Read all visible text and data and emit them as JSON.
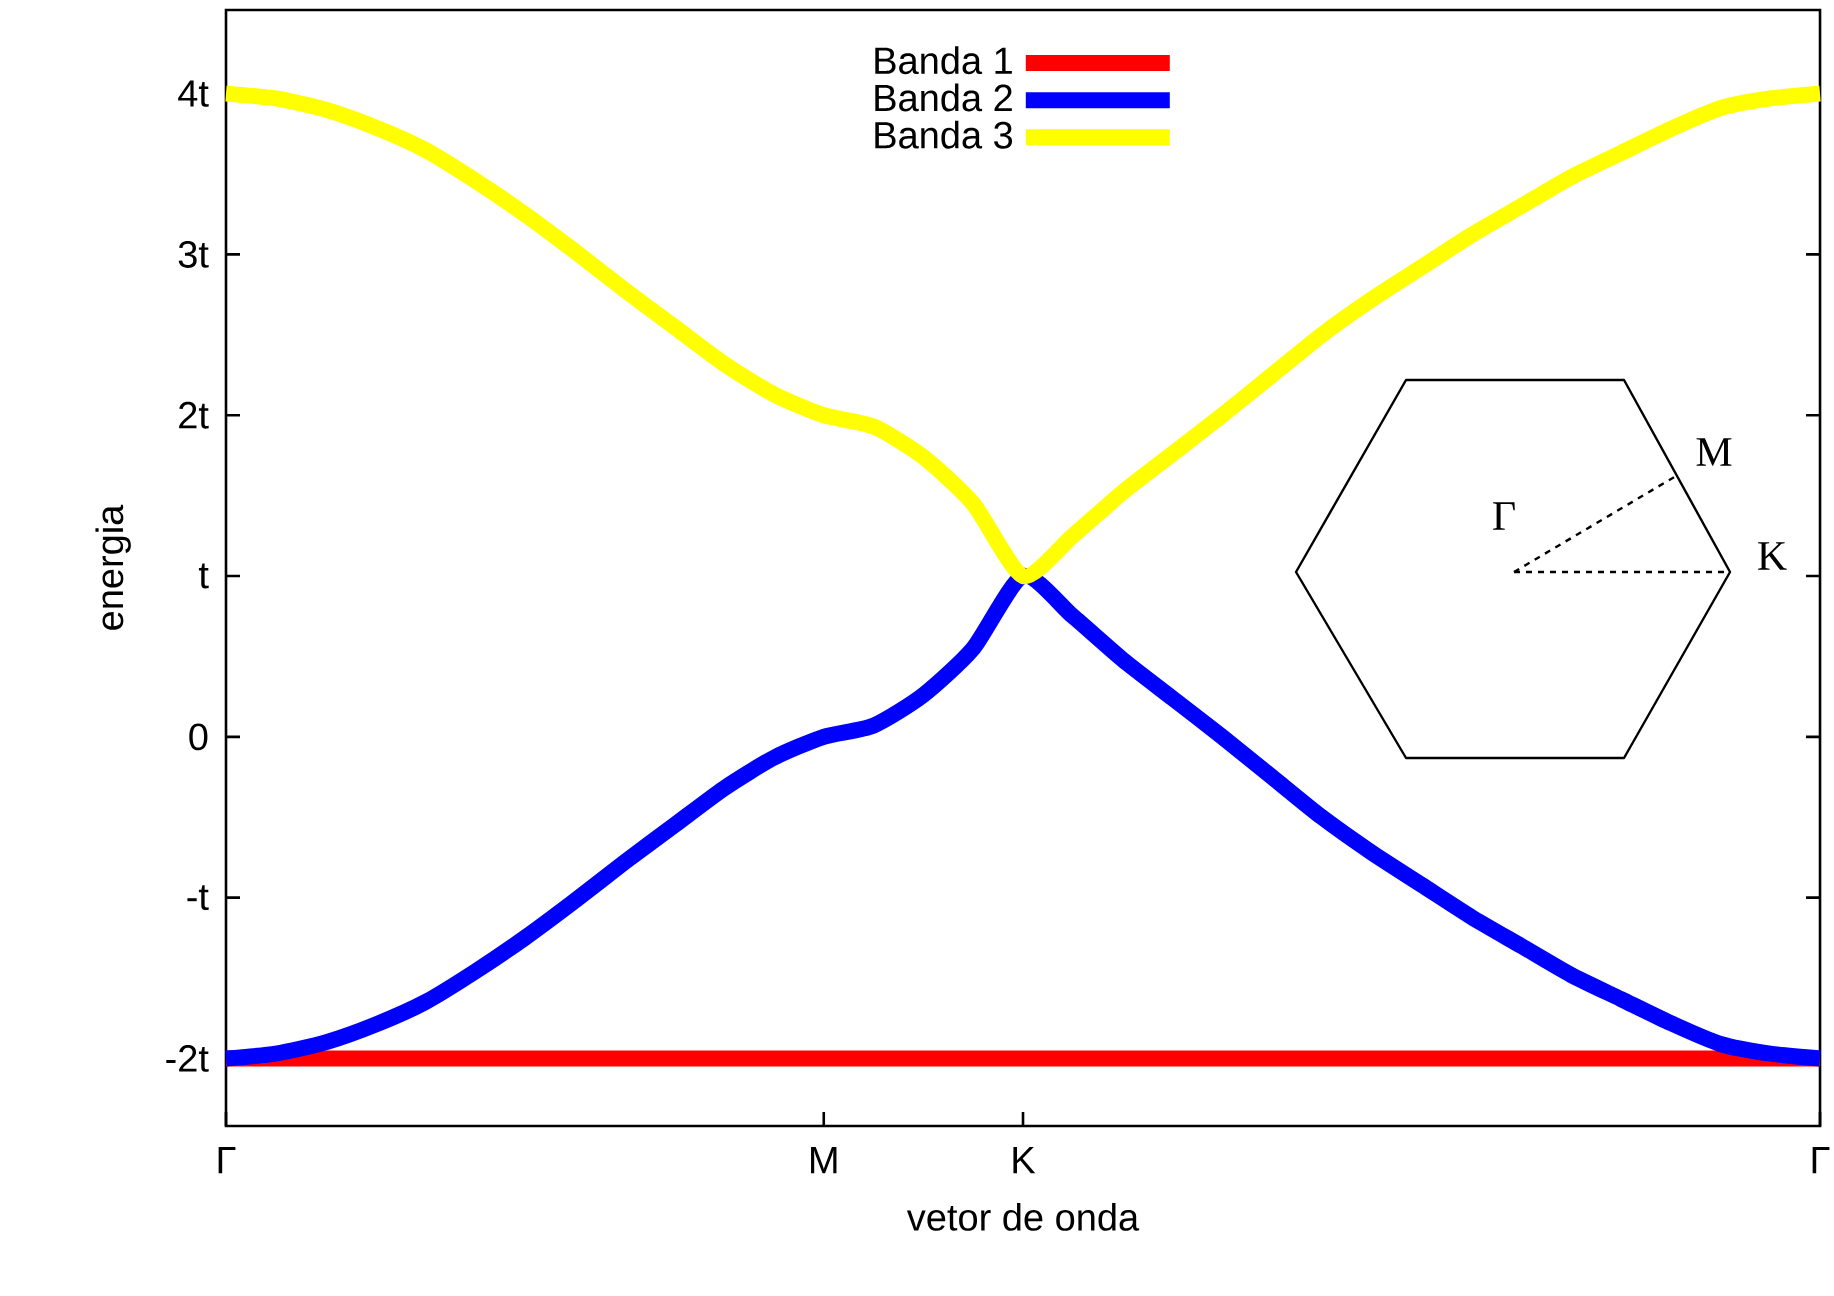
{
  "chart_data": {
    "type": "line",
    "xlabel": "vetor de onda",
    "ylabel": "energia",
    "categories": [
      "Γ",
      null,
      null,
      null,
      null,
      null,
      null,
      null,
      null,
      null,
      null,
      null,
      "M",
      null,
      null,
      null,
      "K",
      null,
      null,
      null,
      null,
      null,
      null,
      null,
      null,
      null,
      null,
      null,
      null,
      null,
      null,
      null,
      "Γ"
    ],
    "series": [
      {
        "name": "Banda 1",
        "color": "#ff0000",
        "values": [
          -2,
          -2,
          -2,
          -2,
          -2,
          -2,
          -2,
          -2,
          -2,
          -2,
          -2,
          -2,
          -2,
          -2,
          -2,
          -2,
          -2,
          -2,
          -2,
          -2,
          -2,
          -2,
          -2,
          -2,
          -2,
          -2,
          -2,
          -2,
          -2,
          -2,
          -2,
          -2,
          -2
        ]
      },
      {
        "name": "Banda 2",
        "color": "#0000ff",
        "values": [
          -2,
          -1.97,
          -1.9,
          -1.79,
          -1.65,
          -1.46,
          -1.25,
          -1.02,
          -0.78,
          -0.55,
          -0.32,
          -0.13,
          0,
          0.07,
          0.26,
          0.55,
          1,
          0.75,
          0.48,
          0.24,
          0,
          -0.25,
          -0.5,
          -0.72,
          -0.92,
          -1.12,
          -1.3,
          -1.48,
          -1.63,
          -1.78,
          -1.91,
          -1.97,
          -2
        ]
      },
      {
        "name": "Banda 3",
        "color": "#ffff00",
        "values": [
          4,
          3.97,
          3.9,
          3.79,
          3.65,
          3.46,
          3.25,
          3.02,
          2.78,
          2.55,
          2.32,
          2.13,
          2,
          1.93,
          1.74,
          1.45,
          1,
          1.25,
          1.52,
          1.76,
          2,
          2.25,
          2.5,
          2.72,
          2.92,
          3.12,
          3.3,
          3.48,
          3.63,
          3.78,
          3.91,
          3.97,
          4
        ]
      }
    ],
    "ylim": [
      -2.42,
      4.52
    ],
    "yticks": [
      {
        "value": -2,
        "label": "-2t"
      },
      {
        "value": -1,
        "label": "-t"
      },
      0,
      {
        "value": 1,
        "label": "t"
      },
      {
        "value": 2,
        "label": "2t"
      },
      {
        "value": 3,
        "label": "3t"
      },
      {
        "value": 4,
        "label": "4t"
      }
    ],
    "legend": "top",
    "annotations": [
      "Γ",
      "M",
      "K"
    ]
  }
}
